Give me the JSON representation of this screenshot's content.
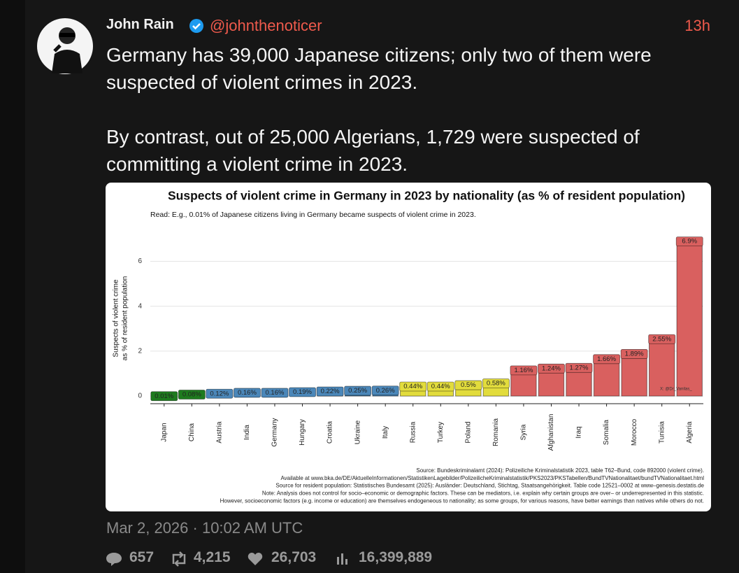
{
  "tweet": {
    "name": "John Rain",
    "handle": "@johnthenoticer",
    "time": "13h",
    "text": [
      "Germany has 39,000 Japanese citizens; only two of them were suspected of violent crimes in 2023.",
      "By contrast, out of 25,000 Algerians, 1,729 were suspected of committing a violent crime in 2023."
    ],
    "date": "Mar 2, 2026 · 10:02 AM UTC",
    "stats": {
      "replies": "657",
      "reposts": "4,215",
      "likes": "26,703",
      "views": "16,399,889"
    }
  },
  "chart_data": {
    "type": "bar",
    "title": "Suspects of violent crime in Germany in 2023 by nationality (as % of resident population)",
    "subtitle": "Read: E.g., 0.01% of Japanese citizens living in Germany became suspects of violent crime in 2023.",
    "ylabel": [
      "Suspects of violent crime",
      "as % of resident population"
    ],
    "categories": [
      "Japan",
      "China",
      "Austria",
      "India",
      "Germany",
      "Hungary",
      "Croatia",
      "Ukraine",
      "Italy",
      "Russia",
      "Turkey",
      "Poland",
      "Romania",
      "Syria",
      "Afghanistan",
      "Iraq",
      "Somalia",
      "Morocco",
      "Tunisia",
      "Algeria"
    ],
    "values": [
      0.01,
      0.08,
      0.12,
      0.16,
      0.16,
      0.19,
      0.22,
      0.25,
      0.26,
      0.44,
      0.44,
      0.5,
      0.58,
      1.16,
      1.24,
      1.27,
      1.66,
      1.89,
      2.55,
      6.9
    ],
    "value_labels": [
      "0.01%",
      "0.08%",
      "0.12%",
      "0.16%",
      "0.16%",
      "0.19%",
      "0.22%",
      "0.25%",
      "0.26%",
      "0.44%",
      "0.44%",
      "0.5%",
      "0.58%",
      "1.16%",
      "1.24%",
      "1.27%",
      "1.66%",
      "1.89%",
      "2.55%",
      "6.9%"
    ],
    "colors": [
      "#1e7b1e",
      "#1e7b1e",
      "#4b87b9",
      "#4b87b9",
      "#4b87b9",
      "#4b87b9",
      "#4b87b9",
      "#4b87b9",
      "#4b87b9",
      "#e2dc3c",
      "#e2dc3c",
      "#e2dc3c",
      "#e2dc3c",
      "#d9605f",
      "#d9605f",
      "#d9605f",
      "#d9605f",
      "#d9605f",
      "#d9605f",
      "#d9605f"
    ],
    "ylim": [
      -0.34,
      7.2
    ],
    "yticks": [
      0,
      2,
      4,
      6
    ],
    "grid": true,
    "annotation": "X: @Dr_Vanilas_",
    "notes": [
      "Source: Bundeskriminalamt (2024): Polizeiliche Kriminalstatistik 2023, table T62–Bund, code 892000 (violent crime).",
      "Available at www.bka.de/DE/AktuelleInformationen/StatistikenLagebilder/PolizeilicheKriminalstatistik/PKS2023/PKSTabellen/BundTVNationalitaet/bundTVNationalitaet.html",
      "Source for resident population: Statistisches Bundesamt (2025): Ausländer: Deutschland, Stichtag, Staatsangehörigkeit. Table code 12521–0002 at www–genesis.destatis.de",
      "Note: Analysis does not control for socio–economic or demographic factors. These can be mediators, i.e. explain why certain groups are over– or underrepresented in this statistic.",
      "However, socioeconomic factors (e.g. income or education) are themselves endogeneous to nationality; as some groups, for various reasons, have better earnings than natives while others do not."
    ]
  }
}
